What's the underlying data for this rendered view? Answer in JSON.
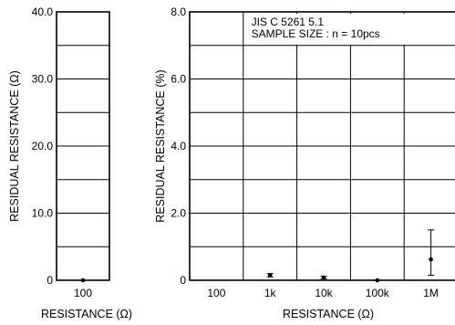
{
  "chart_data": [
    {
      "type": "scatter",
      "xlabel": "RESISTANCE (Ω)",
      "ylabel": "RESIDUAL RESISTANCE (Ω)",
      "ylim": [
        0,
        40
      ],
      "y_ticks": [
        "0",
        "10.0",
        "20.0",
        "30.0",
        "40.0"
      ],
      "categories": [
        "100"
      ],
      "grid": true,
      "series": [
        {
          "values": [
            0.0
          ],
          "err_low": [
            0.0
          ],
          "err_high": [
            0.0
          ]
        }
      ]
    },
    {
      "type": "scatter",
      "xlabel": "RESISTANCE (Ω)",
      "ylabel": "RESIDUAL RESISTANCE (%)",
      "ylim": [
        0,
        8
      ],
      "y_ticks": [
        "0",
        "2.0",
        "4.0",
        "6.0",
        "8.0"
      ],
      "categories": [
        "100",
        "1k",
        "10k",
        "100k",
        "1M"
      ],
      "grid": true,
      "annotations": [
        "JIS  C  5261  5.1",
        "SAMPLE  SIZE : n = 10pcs"
      ],
      "series": [
        {
          "values": [
            null,
            0.15,
            0.08,
            0.0,
            0.62
          ],
          "err_low": [
            null,
            0.1,
            0.04,
            0.0,
            0.15
          ],
          "err_high": [
            null,
            0.2,
            0.12,
            0.0,
            1.5
          ]
        }
      ]
    }
  ]
}
